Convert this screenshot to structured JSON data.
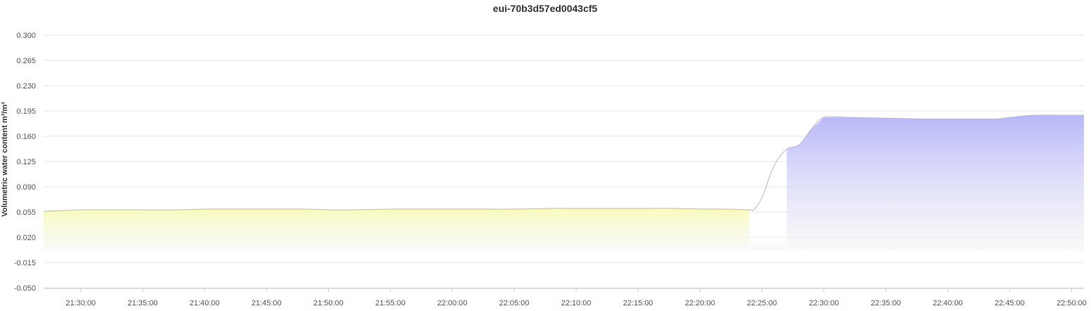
{
  "chart_data": {
    "type": "area",
    "title": "eui-70b3d57ed0043cf5",
    "xlabel": "",
    "ylabel": "Volumetric water content m³/m³",
    "ylim": [
      -0.05,
      0.3
    ],
    "y_ticks": [
      "0.300",
      "0.265",
      "0.230",
      "0.195",
      "0.160",
      "0.125",
      "0.090",
      "0.055",
      "0.020",
      "-0.015",
      "-0.050"
    ],
    "y_tick_values": [
      0.3,
      0.265,
      0.23,
      0.195,
      0.16,
      0.125,
      0.09,
      0.055,
      0.02,
      -0.015,
      -0.05
    ],
    "x_ticks": [
      "21:30:00",
      "21:35:00",
      "21:40:00",
      "21:45:00",
      "21:50:00",
      "21:55:00",
      "22:00:00",
      "22:05:00",
      "22:10:00",
      "22:15:00",
      "22:20:00",
      "22:25:00",
      "22:30:00",
      "22:35:00",
      "22:40:00",
      "22:45:00",
      "22:50:00"
    ],
    "x_range": [
      "21:27:00",
      "22:51:00"
    ],
    "grid": true,
    "legend": "none",
    "series": [
      {
        "x": [
          "21:27:00",
          "21:28:30",
          "21:30:00",
          "21:32:00",
          "21:35:00",
          "21:38:00",
          "21:40:00",
          "21:42:00",
          "21:45:00",
          "21:48:00",
          "21:50:00",
          "21:52:00",
          "21:55:00",
          "21:58:00",
          "22:00:00",
          "22:02:00",
          "22:05:00",
          "22:08:00",
          "22:10:00",
          "22:12:00",
          "22:15:00",
          "22:18:00",
          "22:20:00",
          "22:22:00",
          "22:24:00",
          "22:24:20",
          "22:25:00",
          "22:26:00",
          "22:27:00",
          "22:28:00",
          "22:29:00",
          "22:30:00",
          "22:32:00",
          "22:35:00",
          "22:38:00",
          "22:40:00",
          "22:43:00",
          "22:44:00",
          "22:45:00",
          "22:47:00",
          "22:50:00",
          "22:51:00"
        ],
        "values": [
          0.056,
          0.057,
          0.058,
          0.058,
          0.058,
          0.058,
          0.059,
          0.059,
          0.059,
          0.059,
          0.058,
          0.058,
          0.059,
          0.059,
          0.059,
          0.059,
          0.059,
          0.06,
          0.06,
          0.06,
          0.06,
          0.06,
          0.059,
          0.059,
          0.058,
          0.058,
          0.075,
          0.12,
          0.142,
          0.148,
          0.17,
          0.186,
          0.186,
          0.185,
          0.184,
          0.184,
          0.184,
          0.184,
          0.186,
          0.189,
          0.189,
          0.189
        ]
      }
    ],
    "bands": [
      {
        "from": "21:27:00",
        "to": "22:24:00",
        "color": "#fafab4"
      },
      {
        "from": "22:27:00",
        "to": "22:51:00",
        "color": "#b4b4fa"
      }
    ],
    "line_color": "#bbbbbb"
  }
}
